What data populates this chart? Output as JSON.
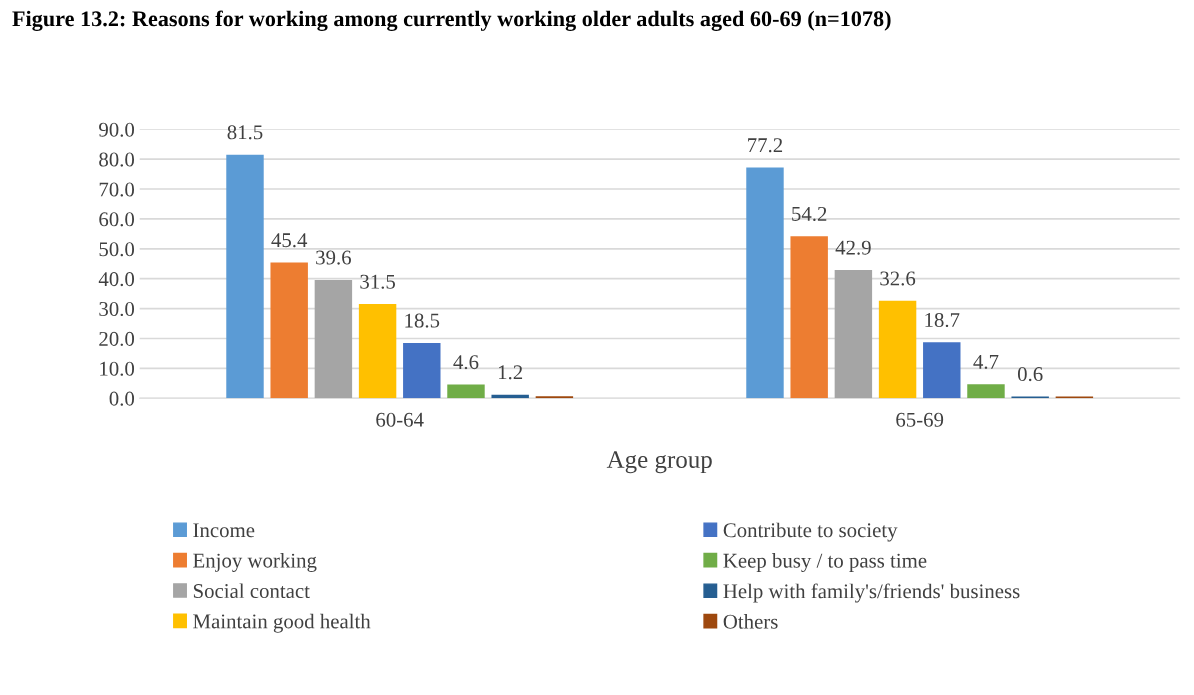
{
  "chart_data": {
    "type": "bar",
    "title": "Figure 13.2: Reasons for working among currently working older adults aged 60-69 (n=1078)",
    "xlabel": "Age group",
    "categories": [
      "60-64",
      "65-69"
    ],
    "series": [
      {
        "name": "Income",
        "color": "#5b9bd5",
        "values": [
          81.5,
          77.2
        ]
      },
      {
        "name": "Enjoy working",
        "color": "#ed7d31",
        "values": [
          45.4,
          54.2
        ]
      },
      {
        "name": "Social contact",
        "color": "#a5a5a5",
        "values": [
          39.6,
          42.9
        ]
      },
      {
        "name": "Maintain good health",
        "color": "#ffc000",
        "values": [
          31.5,
          32.6
        ]
      },
      {
        "name": "Contribute to society",
        "color": "#4472c4",
        "values": [
          18.5,
          18.7
        ]
      },
      {
        "name": "Keep busy / to pass time",
        "color": "#70ad47",
        "values": [
          4.6,
          4.7
        ]
      },
      {
        "name": "Help with family's/friends' business",
        "color": "#255e91",
        "values": [
          1.2,
          0.6
        ]
      },
      {
        "name": "Others",
        "color": "#9e480e",
        "values": [
          0.7,
          0.6
        ],
        "value_labels": [
          null,
          null
        ]
      }
    ],
    "ylim": [
      0,
      90
    ],
    "yticks": [
      {
        "value": 0,
        "label": "0.0"
      },
      {
        "value": 10,
        "label": "10.0"
      },
      {
        "value": 20,
        "label": "20.0"
      },
      {
        "value": 30,
        "label": "30.0"
      },
      {
        "value": 40,
        "label": "40.0"
      },
      {
        "value": 50,
        "label": "50.0"
      },
      {
        "value": 60,
        "label": "60.0"
      },
      {
        "value": 70,
        "label": "70.0"
      },
      {
        "value": 80,
        "label": "80.0"
      },
      {
        "value": 90,
        "label": "90.0"
      }
    ],
    "grid": "y",
    "legend": "bottom",
    "data_labels": true
  }
}
